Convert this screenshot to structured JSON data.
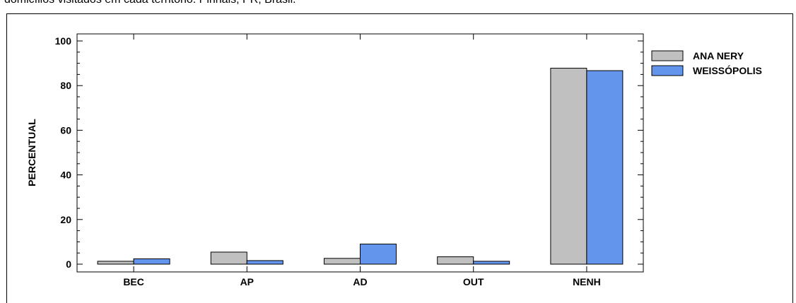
{
  "caption": "domicílios visitados em cada território. Pinhais, PR, Brasil.",
  "chart_data": {
    "type": "bar",
    "title": "",
    "xlabel": "",
    "ylabel": "PERCENTUAL",
    "ylim": [
      0,
      100
    ],
    "yticks": [
      0,
      20,
      40,
      60,
      80,
      100
    ],
    "categories": [
      "BEC",
      "AP",
      "AD",
      "OUT",
      "NENH"
    ],
    "series": [
      {
        "name": "ANA NERY",
        "color": "#c0c0c0",
        "values": [
          1.3,
          5.4,
          2.6,
          3.3,
          87.8
        ]
      },
      {
        "name": "WEISSÓPOLIS",
        "color": "#6495ed",
        "values": [
          2.4,
          1.6,
          9.0,
          1.3,
          86.7
        ]
      }
    ],
    "grid": false,
    "legend_position": "right"
  }
}
